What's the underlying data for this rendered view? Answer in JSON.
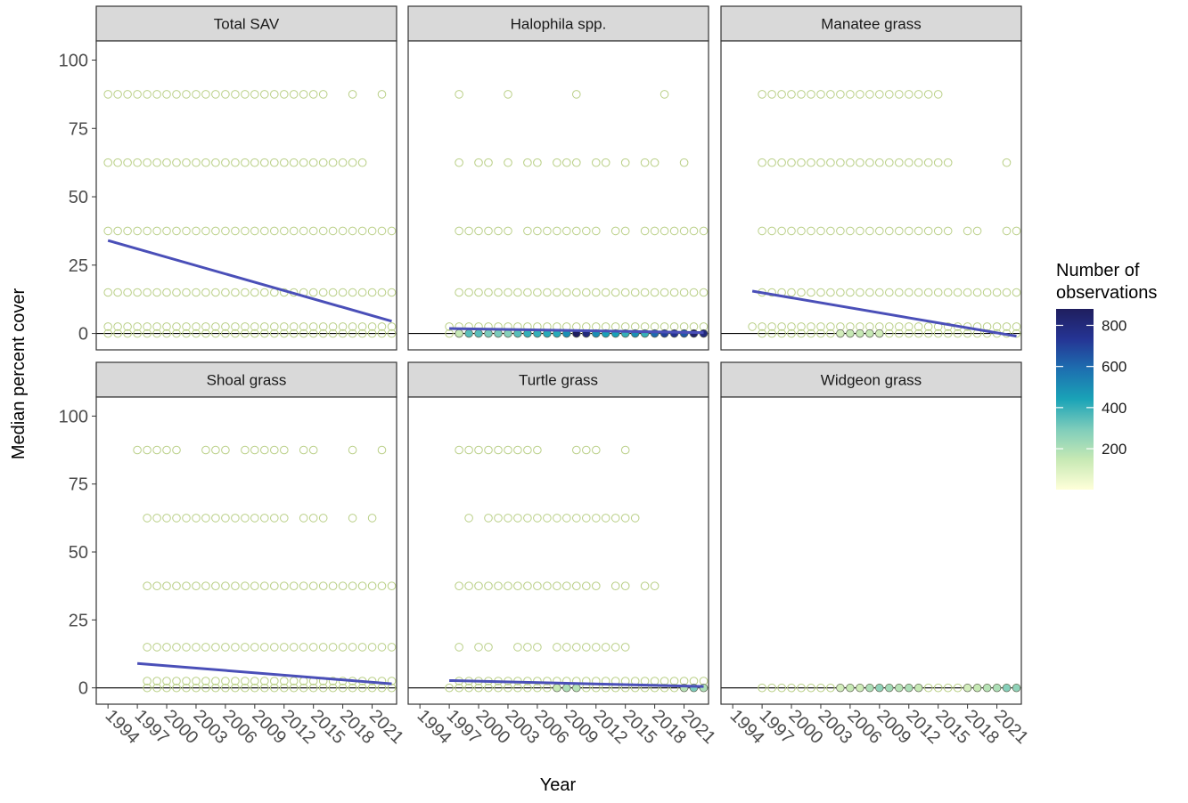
{
  "chart_data": {
    "type": "scatter",
    "xlabel": "Year",
    "ylabel": "Median percent cover",
    "x_ticks": [
      1994,
      1997,
      2000,
      2003,
      2006,
      2009,
      2012,
      2015,
      2018,
      2021
    ],
    "x_range": [
      1992.8,
      2023.5
    ],
    "y_ticks": [
      0,
      25,
      50,
      75,
      100
    ],
    "y_range": [
      -6,
      107
    ],
    "grid": false,
    "legend": {
      "title_lines": [
        "Number of",
        "observations"
      ],
      "type": "colorbar",
      "position": "right",
      "ticks": [
        200,
        400,
        600,
        800
      ],
      "range": [
        1,
        880
      ],
      "colors": [
        "#ffffd9",
        "#c7e9b4",
        "#7fcdbb",
        "#1aa3b7",
        "#1d6fb0",
        "#253494",
        "#1f1e5e"
      ]
    },
    "colors": {
      "point_stroke_low": "#b9cf86",
      "trend_line": "#4a4fb8",
      "strip_bg": "#d9d9d9",
      "panel_border": "#333333",
      "zero_line": "#000000"
    },
    "panels": [
      {
        "title": "Total SAV",
        "points": {
          "87.5": [
            [
              1994,
              2016
            ],
            [
              2019
            ],
            [
              2022
            ]
          ],
          "62.5": [
            [
              1994,
              2020
            ]
          ],
          "37.5": [
            [
              1994,
              2023
            ]
          ],
          "15": [
            [
              1994,
              2023
            ]
          ],
          "2.5": [
            [
              1994,
              2023
            ]
          ],
          "0": [
            [
              1994,
              2023
            ]
          ]
        },
        "trend": [
          [
            1994,
            34
          ],
          [
            2023,
            4.5
          ]
        ]
      },
      {
        "title": "Halophila spp.",
        "points": {
          "87.5": [
            [
              1998
            ],
            [
              2003
            ],
            [
              2010
            ],
            [
              2019
            ]
          ],
          "62.5": [
            [
              1998
            ],
            [
              2000,
              2001
            ],
            [
              2003
            ],
            [
              2005,
              2006
            ],
            [
              2008,
              2010
            ],
            [
              2012,
              2013
            ],
            [
              2015
            ],
            [
              2017,
              2018
            ],
            [
              2021
            ]
          ],
          "37.5": [
            [
              1998,
              2003
            ],
            [
              2005,
              2012
            ],
            [
              2014,
              2015
            ],
            [
              2017,
              2023
            ]
          ],
          "15": [
            [
              1998,
              2023
            ]
          ],
          "2.5": [
            [
              1997,
              2023
            ]
          ],
          "0": [
            [
              1997,
              2023
            ]
          ]
        },
        "colored_zero": [
          [
            1998,
            150
          ],
          [
            1999,
            350
          ],
          [
            2000,
            350
          ],
          [
            2001,
            300
          ],
          [
            2002,
            300
          ],
          [
            2003,
            280
          ],
          [
            2004,
            350
          ],
          [
            2005,
            400
          ],
          [
            2006,
            400
          ],
          [
            2007,
            420
          ],
          [
            2008,
            420
          ],
          [
            2009,
            500
          ],
          [
            2010,
            880
          ],
          [
            2011,
            800
          ],
          [
            2012,
            500
          ],
          [
            2013,
            450
          ],
          [
            2014,
            450
          ],
          [
            2015,
            400
          ],
          [
            2016,
            500
          ],
          [
            2017,
            400
          ],
          [
            2018,
            600
          ],
          [
            2019,
            700
          ],
          [
            2020,
            750
          ],
          [
            2021,
            650
          ],
          [
            2022,
            850
          ],
          [
            2023,
            800
          ]
        ],
        "trend": [
          [
            1997,
            1.8
          ],
          [
            2023,
            0.3
          ]
        ]
      },
      {
        "title": "Manatee grass",
        "points": {
          "87.5": [
            [
              1997,
              2015
            ]
          ],
          "62.5": [
            [
              1997,
              2016
            ],
            [
              2022
            ]
          ],
          "37.5": [
            [
              1997,
              2016
            ],
            [
              2018,
              2019
            ],
            [
              2022,
              2023
            ]
          ],
          "15": [
            [
              1997,
              2023
            ]
          ],
          "2.5": [
            [
              1996,
              2023
            ]
          ],
          "0": [
            [
              1997,
              2023
            ]
          ]
        },
        "colored_zero": [
          [
            2005,
            120
          ],
          [
            2006,
            150
          ],
          [
            2007,
            150
          ],
          [
            2008,
            150
          ],
          [
            2009,
            120
          ]
        ],
        "trend": [
          [
            1996,
            15.5
          ],
          [
            2023,
            -1
          ]
        ]
      },
      {
        "title": "Shoal grass",
        "points": {
          "87.5": [
            [
              1997,
              2001
            ],
            [
              2004,
              2006
            ],
            [
              2008,
              2012
            ],
            [
              2014,
              2015
            ],
            [
              2019
            ],
            [
              2022
            ]
          ],
          "62.5": [
            [
              1998,
              2012
            ],
            [
              2014,
              2016
            ],
            [
              2019
            ],
            [
              2021
            ]
          ],
          "37.5": [
            [
              1998,
              2023
            ]
          ],
          "15": [
            [
              1998,
              2023
            ]
          ],
          "2.5": [
            [
              1998,
              2023
            ]
          ],
          "0": [
            [
              1998,
              2023
            ]
          ]
        },
        "trend": [
          [
            1997,
            9
          ],
          [
            2023,
            1.5
          ]
        ]
      },
      {
        "title": "Turtle grass",
        "points": {
          "87.5": [
            [
              1998,
              2006
            ],
            [
              2010,
              2012
            ],
            [
              2015
            ]
          ],
          "62.5": [
            [
              1999
            ],
            [
              2001,
              2016
            ]
          ],
          "37.5": [
            [
              1998,
              2012
            ],
            [
              2014,
              2015
            ],
            [
              2017,
              2018
            ]
          ],
          "15": [
            [
              1998
            ],
            [
              2000,
              2001
            ],
            [
              2004,
              2006
            ],
            [
              2008,
              2015
            ]
          ],
          "2.5": [
            [
              1998,
              2023
            ]
          ],
          "0": [
            [
              1997,
              2023
            ]
          ]
        },
        "colored_zero": [
          [
            2008,
            150
          ],
          [
            2009,
            200
          ],
          [
            2010,
            180
          ],
          [
            2021,
            180
          ],
          [
            2022,
            300
          ],
          [
            2023,
            200
          ]
        ],
        "trend": [
          [
            1997,
            2.7
          ],
          [
            2023,
            0.5
          ]
        ]
      },
      {
        "title": "Widgeon grass",
        "points": {
          "0": [
            [
              1997,
              2023
            ]
          ]
        },
        "colored_zero": [
          [
            2005,
            120
          ],
          [
            2006,
            150
          ],
          [
            2007,
            130
          ],
          [
            2008,
            200
          ],
          [
            2009,
            260
          ],
          [
            2010,
            220
          ],
          [
            2011,
            180
          ],
          [
            2012,
            200
          ],
          [
            2013,
            150
          ],
          [
            2018,
            120
          ],
          [
            2019,
            150
          ],
          [
            2020,
            180
          ],
          [
            2021,
            200
          ],
          [
            2022,
            280
          ],
          [
            2023,
            260
          ]
        ]
      }
    ]
  }
}
